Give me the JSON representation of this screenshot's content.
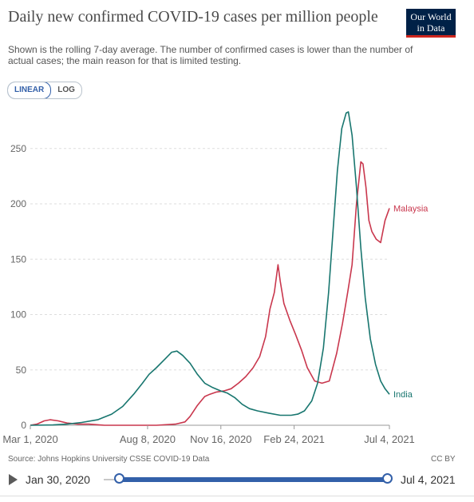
{
  "header": {
    "title": "Daily new confirmed COVID-19 cases per million people",
    "subtitle": "Shown is the rolling 7-day average. The number of confirmed cases is lower than the number of actual cases; the main reason for that is limited testing.",
    "logo_line1": "Our World",
    "logo_line2": "in Data"
  },
  "scale_toggle": {
    "linear_label": "LINEAR",
    "log_label": "LOG",
    "selected": "LINEAR"
  },
  "chart_data": {
    "type": "line",
    "ylim": [
      0,
      280
    ],
    "y_ticks": [
      0,
      50,
      100,
      150,
      200,
      250
    ],
    "x_range": [
      "2020-03-01",
      "2021-07-04"
    ],
    "x_ticks": [
      {
        "date": "2020-03-01",
        "label": "Mar 1, 2020"
      },
      {
        "date": "2020-08-08",
        "label": "Aug 8, 2020"
      },
      {
        "date": "2020-11-16",
        "label": "Nov 16, 2020"
      },
      {
        "date": "2021-02-24",
        "label": "Feb 24, 2021"
      },
      {
        "date": "2021-07-04",
        "label": "Jul 4, 2021"
      }
    ],
    "grid": true,
    "series": [
      {
        "name": "Malaysia",
        "color": "#c9374d",
        "points": [
          [
            "2020-03-01",
            0
          ],
          [
            "2020-03-10",
            1
          ],
          [
            "2020-03-20",
            4
          ],
          [
            "2020-03-28",
            5
          ],
          [
            "2020-04-08",
            4
          ],
          [
            "2020-04-20",
            2
          ],
          [
            "2020-05-05",
            1
          ],
          [
            "2020-05-20",
            1
          ],
          [
            "2020-06-10",
            0
          ],
          [
            "2020-07-15",
            0
          ],
          [
            "2020-08-20",
            0
          ],
          [
            "2020-09-15",
            1
          ],
          [
            "2020-09-28",
            3
          ],
          [
            "2020-10-05",
            8
          ],
          [
            "2020-10-15",
            18
          ],
          [
            "2020-10-25",
            26
          ],
          [
            "2020-11-01",
            28
          ],
          [
            "2020-11-10",
            30
          ],
          [
            "2020-11-20",
            31
          ],
          [
            "2020-11-30",
            33
          ],
          [
            "2020-12-10",
            38
          ],
          [
            "2020-12-20",
            44
          ],
          [
            "2020-12-30",
            52
          ],
          [
            "2021-01-08",
            62
          ],
          [
            "2021-01-16",
            80
          ],
          [
            "2021-01-22",
            105
          ],
          [
            "2021-01-28",
            120
          ],
          [
            "2021-02-02",
            145
          ],
          [
            "2021-02-05",
            130
          ],
          [
            "2021-02-10",
            110
          ],
          [
            "2021-02-18",
            95
          ],
          [
            "2021-02-26",
            82
          ],
          [
            "2021-03-06",
            68
          ],
          [
            "2021-03-14",
            52
          ],
          [
            "2021-03-24",
            40
          ],
          [
            "2021-04-03",
            38
          ],
          [
            "2021-04-13",
            40
          ],
          [
            "2021-04-23",
            65
          ],
          [
            "2021-05-01",
            92
          ],
          [
            "2021-05-08",
            120
          ],
          [
            "2021-05-14",
            145
          ],
          [
            "2021-05-20",
            200
          ],
          [
            "2021-05-26",
            238
          ],
          [
            "2021-05-29",
            236
          ],
          [
            "2021-06-02",
            215
          ],
          [
            "2021-06-06",
            185
          ],
          [
            "2021-06-10",
            175
          ],
          [
            "2021-06-16",
            168
          ],
          [
            "2021-06-22",
            165
          ],
          [
            "2021-06-28",
            185
          ],
          [
            "2021-07-04",
            196
          ]
        ]
      },
      {
        "name": "India",
        "color": "#18766f",
        "points": [
          [
            "2020-03-01",
            0
          ],
          [
            "2020-04-01",
            0.3
          ],
          [
            "2020-04-20",
            1
          ],
          [
            "2020-05-10",
            2.5
          ],
          [
            "2020-06-01",
            5
          ],
          [
            "2020-06-20",
            10
          ],
          [
            "2020-07-05",
            17
          ],
          [
            "2020-07-20",
            28
          ],
          [
            "2020-08-01",
            38
          ],
          [
            "2020-08-10",
            46
          ],
          [
            "2020-08-20",
            52
          ],
          [
            "2020-09-01",
            60
          ],
          [
            "2020-09-10",
            66
          ],
          [
            "2020-09-17",
            67
          ],
          [
            "2020-09-25",
            63
          ],
          [
            "2020-10-05",
            56
          ],
          [
            "2020-10-15",
            46
          ],
          [
            "2020-10-25",
            38
          ],
          [
            "2020-11-05",
            34
          ],
          [
            "2020-11-16",
            31
          ],
          [
            "2020-11-25",
            29
          ],
          [
            "2020-12-05",
            25
          ],
          [
            "2020-12-15",
            19
          ],
          [
            "2020-12-25",
            15
          ],
          [
            "2021-01-05",
            13
          ],
          [
            "2021-01-20",
            11
          ],
          [
            "2021-02-05",
            9
          ],
          [
            "2021-02-20",
            9
          ],
          [
            "2021-03-01",
            10
          ],
          [
            "2021-03-10",
            13
          ],
          [
            "2021-03-20",
            22
          ],
          [
            "2021-03-28",
            38
          ],
          [
            "2021-04-05",
            70
          ],
          [
            "2021-04-12",
            120
          ],
          [
            "2021-04-18",
            175
          ],
          [
            "2021-04-24",
            230
          ],
          [
            "2021-04-30",
            268
          ],
          [
            "2021-05-06",
            282
          ],
          [
            "2021-05-09",
            283
          ],
          [
            "2021-05-14",
            262
          ],
          [
            "2021-05-20",
            215
          ],
          [
            "2021-05-26",
            160
          ],
          [
            "2021-06-01",
            115
          ],
          [
            "2021-06-08",
            78
          ],
          [
            "2021-06-15",
            55
          ],
          [
            "2021-06-22",
            40
          ],
          [
            "2021-06-28",
            33
          ],
          [
            "2021-07-04",
            28
          ]
        ]
      }
    ]
  },
  "footer": {
    "source": "Source: Johns Hopkins University CSSE COVID-19 Data",
    "license": "CC BY"
  },
  "timeline": {
    "start_label": "Jan 30, 2020",
    "end_label": "Jul 4, 2021"
  }
}
